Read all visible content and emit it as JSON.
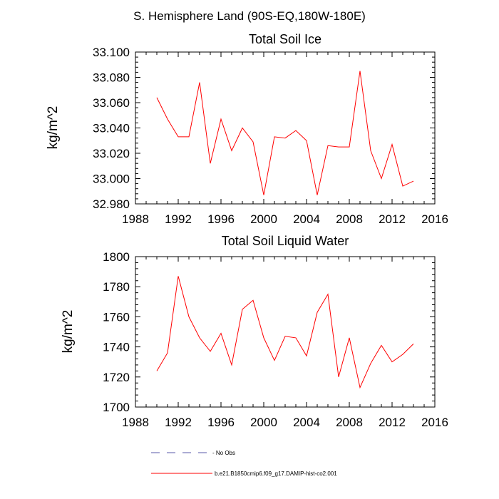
{
  "figure": {
    "suptitle": "S. Hemisphere Land (90S-EQ,180W-180E)"
  },
  "chart_data": [
    {
      "type": "line",
      "title": "Total Soil Ice",
      "xlabel": "",
      "ylabel": "kg/m^2",
      "xlim": [
        1988,
        2016
      ],
      "ylim": [
        32.98,
        33.1
      ],
      "xticks": [
        1988,
        1992,
        1996,
        2000,
        2004,
        2008,
        2012,
        2016
      ],
      "xtick_labels": [
        "1988",
        "1992",
        "1996",
        "2000",
        "2004",
        "2008",
        "2012",
        "2016"
      ],
      "yticks": [
        32.98,
        33.0,
        33.02,
        33.04,
        33.06,
        33.08,
        33.1
      ],
      "ytick_labels": [
        "32.980",
        "33.000",
        "33.020",
        "33.040",
        "33.060",
        "33.080",
        "33.100"
      ],
      "grid": false,
      "series": [
        {
          "name": "b.e21.B1850cmip6.f09_g17.DAMIP-hist-co2.001",
          "color": "#ff0000",
          "x": [
            1990,
            1991,
            1992,
            1993,
            1994,
            1995,
            1996,
            1997,
            1998,
            1999,
            2000,
            2001,
            2002,
            2003,
            2004,
            2005,
            2006,
            2007,
            2008,
            2009,
            2010,
            2011,
            2012,
            2013,
            2014
          ],
          "y": [
            33.064,
            33.047,
            33.033,
            33.033,
            33.076,
            33.012,
            33.047,
            33.022,
            33.04,
            33.029,
            32.987,
            33.033,
            33.032,
            33.038,
            33.03,
            32.987,
            33.026,
            33.025,
            33.025,
            33.085,
            33.022,
            33.0,
            33.027,
            32.994,
            32.998
          ]
        }
      ]
    },
    {
      "type": "line",
      "title": "Total Soil Liquid Water",
      "xlabel": "",
      "ylabel": "kg/m^2",
      "xlim": [
        1988,
        2016
      ],
      "ylim": [
        1700,
        1800
      ],
      "xticks": [
        1988,
        1992,
        1996,
        2000,
        2004,
        2008,
        2012,
        2016
      ],
      "xtick_labels": [
        "1988",
        "1992",
        "1996",
        "2000",
        "2004",
        "2008",
        "2012",
        "2016"
      ],
      "yticks": [
        1700,
        1720,
        1740,
        1760,
        1780,
        1800
      ],
      "ytick_labels": [
        "1700",
        "1720",
        "1740",
        "1760",
        "1780",
        "1800"
      ],
      "grid": false,
      "series": [
        {
          "name": "b.e21.B1850cmip6.f09_g17.DAMIP-hist-co2.001",
          "color": "#ff0000",
          "x": [
            1990,
            1991,
            1992,
            1993,
            1994,
            1995,
            1996,
            1997,
            1998,
            1999,
            2000,
            2001,
            2002,
            2003,
            2004,
            2005,
            2006,
            2007,
            2008,
            2009,
            2010,
            2011,
            2012,
            2013,
            2014
          ],
          "y": [
            1724,
            1736,
            1787,
            1760,
            1746,
            1737,
            1749,
            1728,
            1765,
            1771,
            1746,
            1731,
            1747,
            1746,
            1734,
            1763,
            1775,
            1720,
            1746,
            1713,
            1729,
            1741,
            1730,
            1735,
            1742
          ]
        }
      ]
    }
  ],
  "legend": {
    "placement": "bottom",
    "items": [
      {
        "label": "- No Obs",
        "color": "#5a5aa8",
        "dash": true
      },
      {
        "label": "b.e21.B1850cmip6.f09_g17.DAMIP-hist-co2.001",
        "color": "#ff0000",
        "dash": false
      }
    ]
  }
}
